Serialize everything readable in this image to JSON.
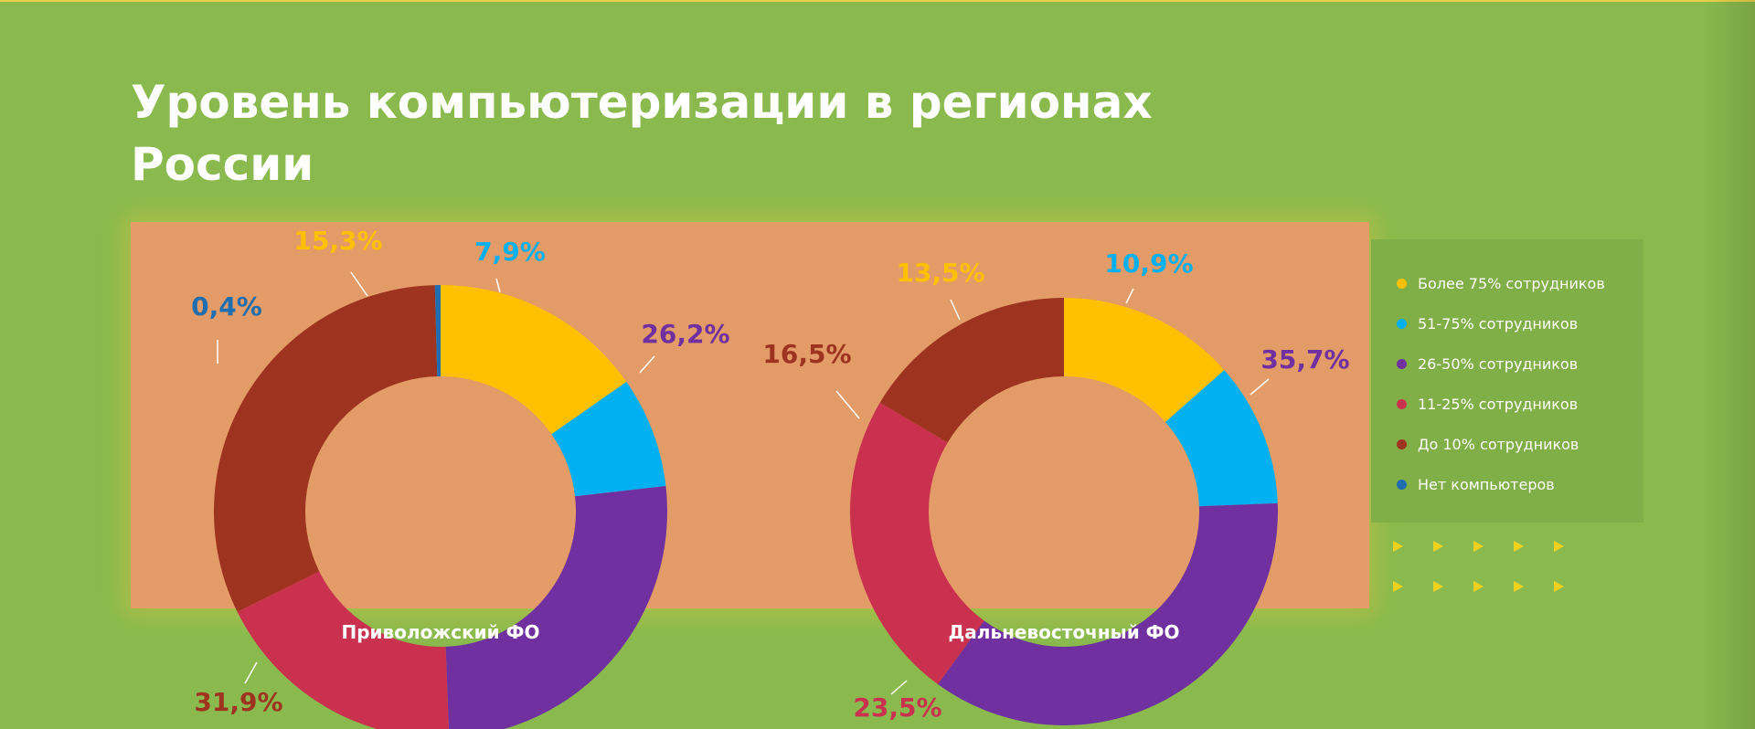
{
  "title": "Уровень компьютеризации в регионах России",
  "legend": [
    {
      "label": "Более 75% сотрудников",
      "color": "#ffc000"
    },
    {
      "label": "51-75% сотрудников",
      "color": "#00b0f0"
    },
    {
      "label": "26-50% сотрудников",
      "color": "#7030a0"
    },
    {
      "label": "11-25% сотрудников",
      "color": "#c9314f"
    },
    {
      "label": "До 10% сотрудников",
      "color": "#9e3420"
    },
    {
      "label": "Нет компьютеров",
      "color": "#1f6eb0"
    }
  ],
  "chart_data": [
    {
      "type": "pie",
      "title": "Приволожский ФО",
      "labels": [
        "Более 75% сотрудников",
        "51-75% сотрудников",
        "26-50% сотрудников",
        "11-25% сотрудников",
        "До 10% сотрудников",
        "Нет компьютеров"
      ],
      "values": [
        15.3,
        7.9,
        26.2,
        18.3,
        31.9,
        0.4
      ],
      "value_labels": [
        "15,3%",
        "7,9%",
        "26,2%",
        "",
        "31,9%",
        "0,4%"
      ],
      "colors": [
        "#ffc000",
        "#00b0f0",
        "#7030a0",
        "#c9314f",
        "#9e3420",
        "#1f6eb0"
      ]
    },
    {
      "type": "pie",
      "title": "Дальневосточный ФО",
      "labels": [
        "Более 75% сотрудников",
        "51-75% сотрудников",
        "26-50% сотрудников",
        "11-25% сотрудников",
        "До 10% сотрудников"
      ],
      "values": [
        13.5,
        10.9,
        35.7,
        23.5,
        16.5
      ],
      "value_labels": [
        "13,5%",
        "10,9%",
        "35,7%",
        "23,5%",
        "16,5%"
      ],
      "colors": [
        "#ffc000",
        "#00b0f0",
        "#7030a0",
        "#c9314f",
        "#9e3420"
      ]
    }
  ]
}
